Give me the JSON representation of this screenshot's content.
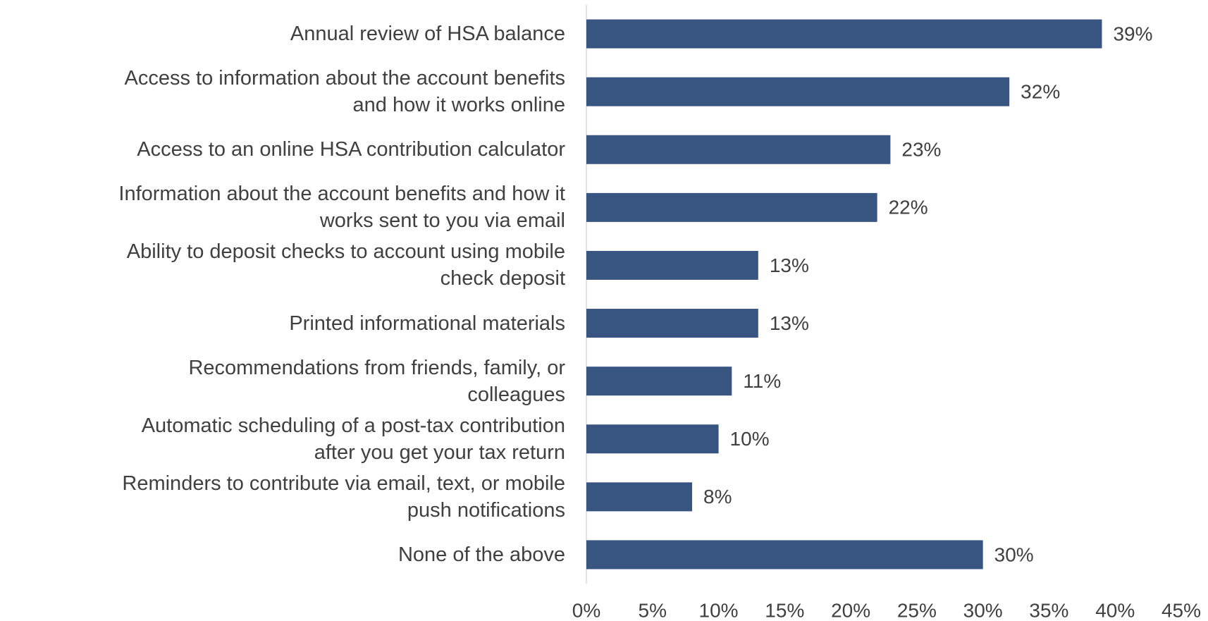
{
  "chart_data": {
    "type": "barh",
    "categories": [
      "Annual review of HSA balance",
      "Access to information about the account benefits\nand how it works online",
      "Access to an online HSA contribution calculator",
      "Information about the account benefits and how it\nworks sent to you via email",
      "Ability to deposit checks to account using mobile\ncheck deposit",
      "Printed informational materials",
      "Recommendations from friends, family, or\ncolleagues",
      "Automatic scheduling of a post-tax contribution\nafter you get your tax return",
      "Reminders to contribute via email, text, or mobile\npush notifications",
      "None of the above"
    ],
    "values": [
      39,
      32,
      23,
      22,
      13,
      13,
      11,
      10,
      8,
      30
    ],
    "value_labels": [
      "39%",
      "32%",
      "23%",
      "22%",
      "13%",
      "13%",
      "11%",
      "10%",
      "8%",
      "30%"
    ],
    "color": "#385481",
    "xlim": [
      0,
      45
    ],
    "xticks": [
      {
        "value": 0,
        "label": "0%"
      },
      {
        "value": 5,
        "label": "5%"
      },
      {
        "value": 10,
        "label": "10%"
      },
      {
        "value": 15,
        "label": "15%"
      },
      {
        "value": 20,
        "label": "20%"
      },
      {
        "value": 25,
        "label": "25%"
      },
      {
        "value": 30,
        "label": "30%"
      },
      {
        "value": 35,
        "label": "35%"
      },
      {
        "value": 40,
        "label": "40%"
      },
      {
        "value": 45,
        "label": "45%"
      }
    ],
    "grid": false
  }
}
